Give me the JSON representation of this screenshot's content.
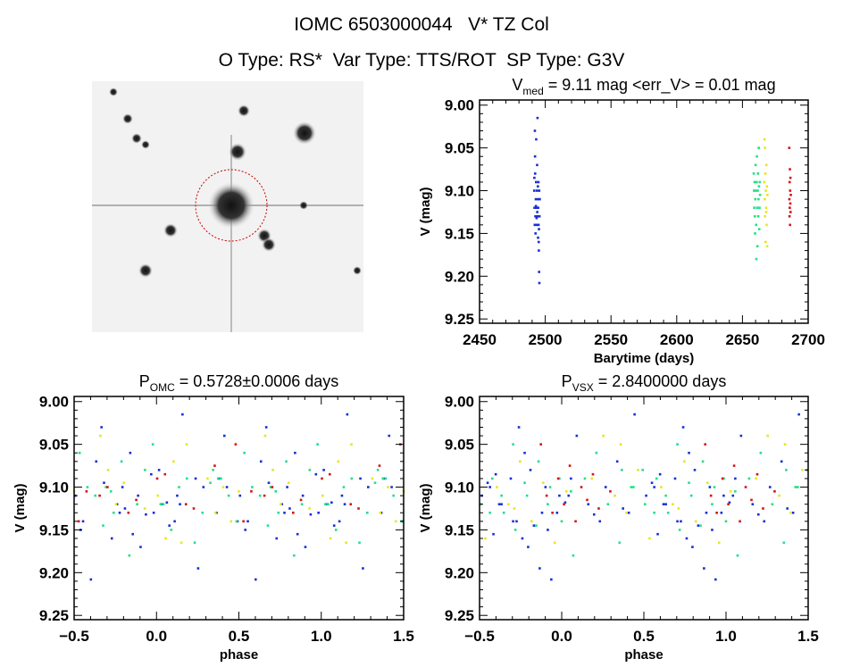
{
  "header": {
    "title": "IOMC 6503000044   V* TZ Col",
    "subtitle": "O Type: RS*  Var Type: TTS/ROT  SP Type: G3V"
  },
  "image_panel": {
    "name": "finding-chart",
    "circle_color": "#cc0000"
  },
  "colors": {
    "blue": "#1a2fd6",
    "green": "#22e08a",
    "yellow": "#e6e61e",
    "red": "#d41414"
  },
  "chart_data": [
    {
      "type": "scatter",
      "id": "lightcurve",
      "title_main": "V",
      "title_sub": "med",
      "title_rest": " = 9.11 mag <err_V> = 0.01 mag",
      "xlabel": "Barytime (days)",
      "ylabel": "V (mag)",
      "xlim": [
        2450,
        2700
      ],
      "ylim": [
        8.994,
        9.255
      ],
      "xticks": [
        "2450",
        "2500",
        "2550",
        "2600",
        "2650",
        "2700"
      ],
      "yticks": [
        "9.00",
        "9.05",
        "9.10",
        "9.15",
        "9.20",
        "9.25"
      ],
      "series": [
        {
          "name": "season-1",
          "color": "#1a2fd6",
          "t": [
            2491.6,
            2491.8,
            2492.0,
            2492.1,
            2492.3,
            2492.5,
            2492.6,
            2492.8,
            2493.0,
            2493.1,
            2493.3,
            2493.5,
            2493.6,
            2493.8,
            2494.0,
            2494.1,
            2494.3,
            2494.5,
            2494.6,
            2494.8,
            2495.0,
            2495.1,
            2495.3,
            2495.5,
            2495.6,
            2495.8,
            2492.2,
            2493.9,
            2494.9,
            2495.4,
            2491.7,
            2492.9,
            2493.4,
            2494.4,
            2495.2
          ],
          "v": [
            9.1,
            9.12,
            9.14,
            9.03,
            9.08,
            9.13,
            9.15,
            9.11,
            9.09,
            9.04,
            9.12,
            9.14,
            9.1,
            9.07,
            9.13,
            9.015,
            9.11,
            9.155,
            9.12,
            9.09,
            9.16,
            9.17,
            9.195,
            9.208,
            9.13,
            9.11,
            9.06,
            9.125,
            9.14,
            9.1,
            9.085,
            9.118,
            9.132,
            9.095,
            9.145
          ]
        },
        {
          "name": "season-2",
          "color": "#22e08a",
          "t": [
            2658.6,
            2658.8,
            2659.0,
            2659.2,
            2659.4,
            2659.6,
            2659.8,
            2660.0,
            2660.2,
            2660.4,
            2660.6,
            2660.8,
            2661.0,
            2661.2,
            2661.4,
            2661.6,
            2661.8,
            2662.0,
            2662.2,
            2662.4,
            2662.6,
            2662.8,
            2663.0,
            2663.2,
            2663.4
          ],
          "v": [
            9.08,
            9.1,
            9.12,
            9.09,
            9.13,
            9.15,
            9.11,
            9.07,
            9.1,
            9.14,
            9.18,
            9.09,
            9.06,
            9.12,
            9.165,
            9.1,
            9.08,
            9.13,
            9.11,
            9.05,
            9.095,
            9.145,
            9.12,
            9.09,
            9.105
          ]
        },
        {
          "name": "season-3",
          "color": "#e6e61e",
          "t": [
            2666.6,
            2666.8,
            2667.0,
            2667.2,
            2667.4,
            2667.6,
            2667.8,
            2668.0,
            2668.2,
            2668.4,
            2668.6,
            2668.8,
            2669.0,
            2667.1,
            2668.1
          ],
          "v": [
            9.09,
            9.04,
            9.11,
            9.13,
            9.08,
            9.16,
            9.1,
            9.12,
            9.07,
            9.14,
            9.095,
            9.165,
            9.105,
            9.05,
            9.125
          ]
        },
        {
          "name": "season-4",
          "color": "#d41414",
          "t": [
            2685.6,
            2685.7,
            2685.8,
            2685.9,
            2686.0,
            2686.1,
            2686.2,
            2686.3,
            2686.4,
            2686.5,
            2686.6,
            2686.8
          ],
          "v": [
            9.05,
            9.11,
            9.13,
            9.09,
            9.12,
            9.075,
            9.14,
            9.1,
            9.115,
            9.085,
            9.125,
            9.105
          ]
        }
      ]
    },
    {
      "type": "scatter",
      "id": "phase-omc",
      "title_main": "P",
      "title_sub": "OMC",
      "title_rest": " = 0.5728±0.0006 days",
      "period": 0.5728,
      "xlabel": "phase",
      "ylabel": "V (mag)",
      "xlim": [
        -0.5,
        1.5
      ],
      "ylim": [
        8.994,
        9.255
      ],
      "xticks": [
        "−0.5",
        "0.0",
        "0.5",
        "1.0",
        "1.5"
      ],
      "yticks": [
        "9.00",
        "9.05",
        "9.10",
        "9.15",
        "9.20",
        "9.25"
      ],
      "source": "lightcurve"
    },
    {
      "type": "scatter",
      "id": "phase-vsx",
      "title_main": "P",
      "title_sub": "VSX",
      "title_rest": " = 2.8400000 days",
      "period": 2.84,
      "xlabel": "phase",
      "ylabel": "V (mag)",
      "xlim": [
        -0.5,
        1.5
      ],
      "ylim": [
        8.994,
        9.255
      ],
      "xticks": [
        "−0.5",
        "0.0",
        "0.5",
        "1.0",
        "1.5"
      ],
      "yticks": [
        "9.00",
        "9.05",
        "9.10",
        "9.15",
        "9.20",
        "9.25"
      ],
      "source": "lightcurve"
    }
  ]
}
